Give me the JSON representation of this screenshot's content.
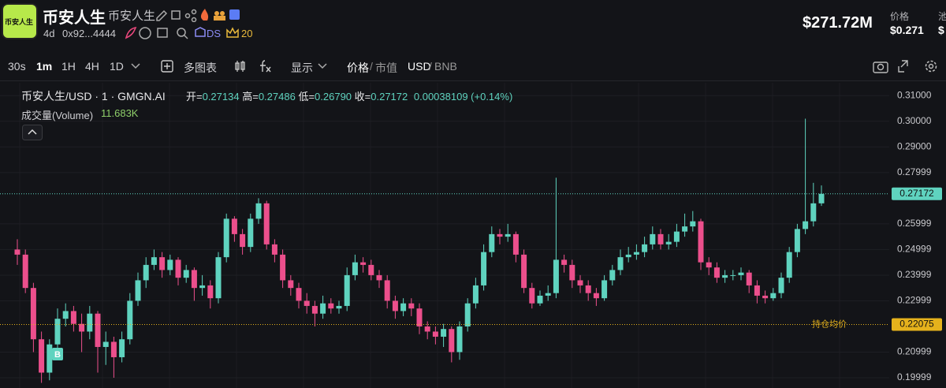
{
  "header": {
    "logo_text": "币安人生",
    "title": "币安人生",
    "subtitle": "币安人生",
    "age": "4d",
    "address": "0x92...4444",
    "ds": "DS",
    "count": "20",
    "market_cap": "$271.72M",
    "price_label": "价格",
    "price": "$0.271",
    "cut_label": "池",
    "cut_value": "$"
  },
  "toolbar": {
    "intervals": [
      "30s",
      "1m",
      "1H",
      "4H",
      "1D"
    ],
    "multi_chart": "多图表",
    "display": "显示",
    "price": "价格",
    "slash": "/",
    "mcap": "市值",
    "currency": "USD",
    "currency_alt": "BNB"
  },
  "legend": {
    "symbol": "币安人生/USD · 1 · GMGN.AI",
    "open_label": "开=",
    "open": "0.27134",
    "high_label": "高=",
    "high": "0.27486",
    "low_label": "低=",
    "low": "0.26790",
    "close_label": "收=",
    "close": "0.27172",
    "change": "0.00038109 (+0.14%)",
    "volume_label": "成交量(Volume)",
    "volume": "11.683K"
  },
  "chart_data": {
    "type": "candlestick",
    "up_color": "#5fd3bf",
    "down_color": "#ec4f8c",
    "open": [
      0.25,
      0.248,
      0.235,
      0.215,
      0.202,
      0.213,
      0.223,
      0.226,
      0.221,
      0.218,
      0.225,
      0.212,
      0.214,
      0.208,
      0.215,
      0.23,
      0.238,
      0.244,
      0.247,
      0.242,
      0.246,
      0.239,
      0.242,
      0.235,
      0.236,
      0.231,
      0.247,
      0.262,
      0.256,
      0.251,
      0.262,
      0.268,
      0.252,
      0.248,
      0.238,
      0.235,
      0.23,
      0.228,
      0.225,
      0.229,
      0.227,
      0.228,
      0.24,
      0.245,
      0.244,
      0.24,
      0.238,
      0.23,
      0.226,
      0.229,
      0.227,
      0.22,
      0.218,
      0.216,
      0.219,
      0.21,
      0.22,
      0.229,
      0.236,
      0.249,
      0.256,
      0.255,
      0.256,
      0.248,
      0.235,
      0.229,
      0.232,
      0.233,
      0.246,
      0.244,
      0.238,
      0.236,
      0.233,
      0.231,
      0.238,
      0.242,
      0.247,
      0.248,
      0.249,
      0.252,
      0.256,
      0.252,
      0.253,
      0.257,
      0.259,
      0.261,
      0.245,
      0.243,
      0.239,
      0.24,
      0.24,
      0.241,
      0.236,
      0.232,
      0.231,
      0.233,
      0.239,
      0.249,
      0.258,
      0.261,
      0.268
    ],
    "high": [
      0.254,
      0.25,
      0.237,
      0.218,
      0.215,
      0.227,
      0.229,
      0.228,
      0.225,
      0.228,
      0.226,
      0.218,
      0.216,
      0.218,
      0.233,
      0.241,
      0.247,
      0.25,
      0.249,
      0.248,
      0.247,
      0.244,
      0.243,
      0.24,
      0.238,
      0.249,
      0.264,
      0.263,
      0.258,
      0.264,
      0.27,
      0.269,
      0.254,
      0.25,
      0.24,
      0.237,
      0.233,
      0.23,
      0.232,
      0.231,
      0.23,
      0.243,
      0.248,
      0.247,
      0.246,
      0.242,
      0.24,
      0.232,
      0.231,
      0.231,
      0.229,
      0.222,
      0.22,
      0.221,
      0.22,
      0.222,
      0.231,
      0.239,
      0.252,
      0.259,
      0.258,
      0.26,
      0.257,
      0.25,
      0.237,
      0.234,
      0.236,
      0.278,
      0.248,
      0.246,
      0.24,
      0.238,
      0.235,
      0.24,
      0.244,
      0.25,
      0.251,
      0.252,
      0.255,
      0.259,
      0.258,
      0.256,
      0.26,
      0.264,
      0.265,
      0.262,
      0.247,
      0.245,
      0.242,
      0.242,
      0.243,
      0.242,
      0.238,
      0.234,
      0.235,
      0.241,
      0.251,
      0.26,
      0.301,
      0.276,
      0.275
    ],
    "low": [
      0.244,
      0.233,
      0.21,
      0.198,
      0.199,
      0.21,
      0.22,
      0.218,
      0.21,
      0.215,
      0.202,
      0.205,
      0.2,
      0.206,
      0.213,
      0.228,
      0.235,
      0.242,
      0.239,
      0.24,
      0.236,
      0.237,
      0.23,
      0.232,
      0.227,
      0.229,
      0.245,
      0.253,
      0.248,
      0.249,
      0.26,
      0.25,
      0.245,
      0.235,
      0.232,
      0.227,
      0.225,
      0.22,
      0.223,
      0.225,
      0.225,
      0.226,
      0.238,
      0.241,
      0.238,
      0.235,
      0.227,
      0.223,
      0.224,
      0.224,
      0.217,
      0.215,
      0.213,
      0.212,
      0.206,
      0.207,
      0.218,
      0.227,
      0.234,
      0.247,
      0.252,
      0.253,
      0.245,
      0.233,
      0.227,
      0.228,
      0.23,
      0.231,
      0.241,
      0.235,
      0.233,
      0.23,
      0.228,
      0.23,
      0.236,
      0.24,
      0.245,
      0.246,
      0.247,
      0.25,
      0.25,
      0.25,
      0.251,
      0.255,
      0.257,
      0.242,
      0.24,
      0.237,
      0.237,
      0.238,
      0.238,
      0.233,
      0.229,
      0.229,
      0.23,
      0.231,
      0.237,
      0.247,
      0.256,
      0.259,
      0.267
    ],
    "close": [
      0.248,
      0.235,
      0.215,
      0.202,
      0.213,
      0.223,
      0.226,
      0.221,
      0.218,
      0.225,
      0.212,
      0.214,
      0.208,
      0.215,
      0.23,
      0.238,
      0.244,
      0.247,
      0.242,
      0.246,
      0.239,
      0.242,
      0.235,
      0.236,
      0.231,
      0.247,
      0.262,
      0.256,
      0.251,
      0.262,
      0.268,
      0.252,
      0.248,
      0.238,
      0.235,
      0.23,
      0.228,
      0.225,
      0.229,
      0.227,
      0.228,
      0.24,
      0.245,
      0.244,
      0.24,
      0.238,
      0.23,
      0.226,
      0.229,
      0.227,
      0.22,
      0.218,
      0.216,
      0.219,
      0.21,
      0.22,
      0.229,
      0.236,
      0.249,
      0.256,
      0.255,
      0.256,
      0.248,
      0.235,
      0.229,
      0.232,
      0.233,
      0.246,
      0.244,
      0.238,
      0.236,
      0.233,
      0.231,
      0.238,
      0.242,
      0.247,
      0.248,
      0.249,
      0.252,
      0.256,
      0.252,
      0.253,
      0.257,
      0.259,
      0.261,
      0.245,
      0.243,
      0.239,
      0.24,
      0.24,
      0.241,
      0.236,
      0.232,
      0.231,
      0.233,
      0.239,
      0.249,
      0.258,
      0.261,
      0.268,
      0.2717
    ],
    "ylim": [
      0.196,
      0.315
    ],
    "yticks": [
      {
        "value": 0.31,
        "label": "0.31000"
      },
      {
        "value": 0.3,
        "label": "0.30000"
      },
      {
        "value": 0.29,
        "label": "0.29000"
      },
      0.27999,
      0.25999,
      0.24999,
      0.23999,
      0.22999,
      0.20999,
      0.19999
    ],
    "price_line": {
      "value": 0.27172,
      "color": "#5fd3bf"
    },
    "avg_line": {
      "name": "持仓均价",
      "value": 0.22075,
      "color": "#e5b21c"
    },
    "buy_marker": "B"
  }
}
